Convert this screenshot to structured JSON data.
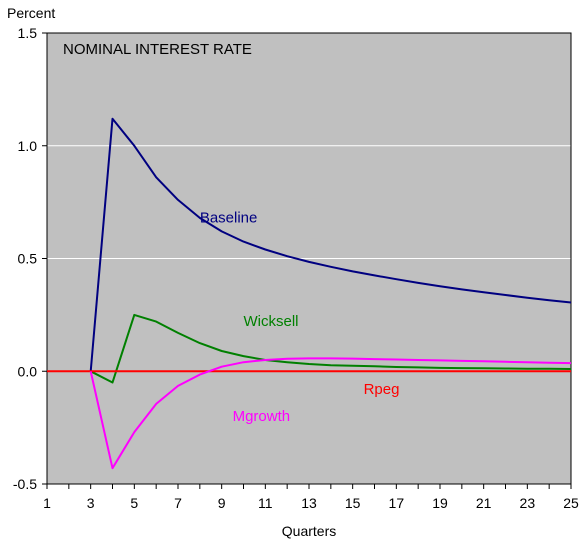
{
  "chart_data": {
    "type": "line",
    "title": "NOMINAL INTEREST RATE",
    "ylabel": "Percent",
    "xlabel": "Quarters",
    "xlim": [
      1,
      25
    ],
    "ylim": [
      -0.5,
      1.5
    ],
    "xticks": [
      1,
      3,
      5,
      7,
      9,
      11,
      13,
      15,
      17,
      19,
      21,
      23,
      25
    ],
    "yticks": [
      -0.5,
      0.0,
      0.5,
      1.0,
      1.5
    ],
    "ytick_labels": [
      "-0.5",
      "0.0",
      "0.5",
      "1.0",
      "1.5"
    ],
    "grid": "horizontal",
    "background": "#c0c0c0",
    "series": [
      {
        "name": "Baseline",
        "color": "#000080",
        "label_x": 8,
        "label_y": 0.66,
        "x": [
          3,
          4,
          5,
          6,
          7,
          8,
          9,
          10,
          11,
          12,
          13,
          14,
          15,
          16,
          17,
          18,
          19,
          20,
          21,
          22,
          23,
          24,
          25
        ],
        "y": [
          0.0,
          1.12,
          1.0,
          0.86,
          0.76,
          0.68,
          0.62,
          0.575,
          0.54,
          0.51,
          0.485,
          0.463,
          0.443,
          0.425,
          0.408,
          0.392,
          0.377,
          0.363,
          0.35,
          0.338,
          0.326,
          0.315,
          0.305
        ]
      },
      {
        "name": "Wicksell",
        "color": "#008000",
        "label_x": 10,
        "label_y": 0.2,
        "x": [
          3,
          4,
          5,
          6,
          7,
          8,
          9,
          10,
          11,
          12,
          13,
          14,
          15,
          16,
          17,
          18,
          19,
          20,
          21,
          22,
          23,
          24,
          25
        ],
        "y": [
          0.0,
          -0.05,
          0.25,
          0.22,
          0.17,
          0.125,
          0.09,
          0.067,
          0.05,
          0.04,
          0.032,
          0.027,
          0.024,
          0.022,
          0.019,
          0.017,
          0.015,
          0.014,
          0.013,
          0.012,
          0.011,
          0.011,
          0.01
        ]
      },
      {
        "name": "Rpeg",
        "color": "#ff0000",
        "label_x": 15.5,
        "label_y": -0.1,
        "x": [
          1,
          25
        ],
        "y": [
          0.0,
          0.0
        ]
      },
      {
        "name": "Mgrowth",
        "color": "#ff00ff",
        "label_x": 9.5,
        "label_y": -0.22,
        "x": [
          3,
          4,
          5,
          6,
          7,
          8,
          9,
          10,
          11,
          12,
          13,
          14,
          15,
          16,
          17,
          18,
          19,
          20,
          21,
          22,
          23,
          24,
          25
        ],
        "y": [
          0.0,
          -0.43,
          -0.27,
          -0.145,
          -0.065,
          -0.015,
          0.02,
          0.04,
          0.05,
          0.055,
          0.057,
          0.057,
          0.056,
          0.054,
          0.052,
          0.05,
          0.048,
          0.046,
          0.044,
          0.042,
          0.04,
          0.038,
          0.036
        ]
      }
    ]
  }
}
